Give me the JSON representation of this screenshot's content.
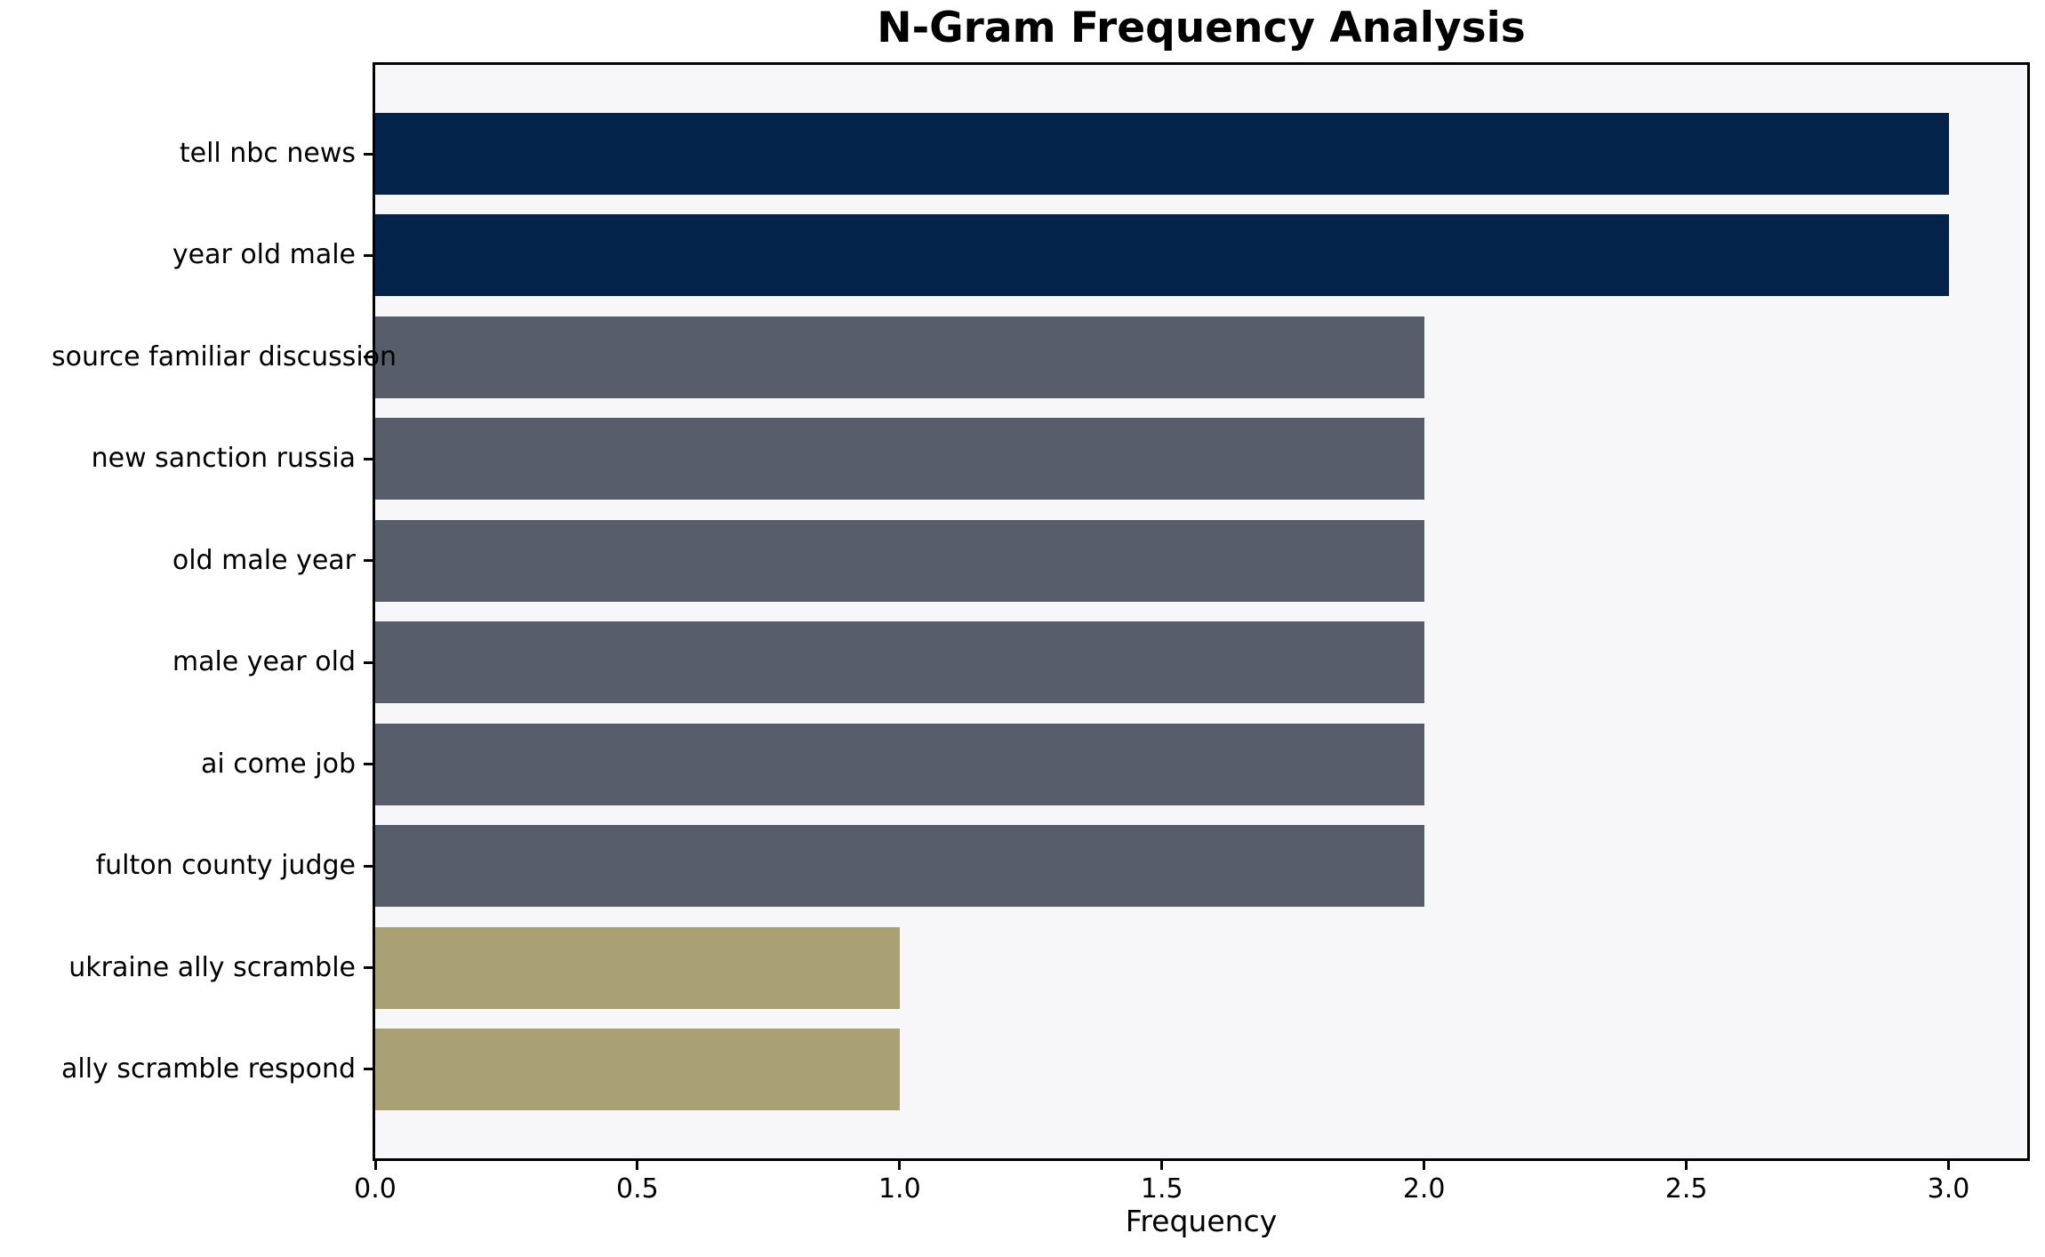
{
  "chart_data": {
    "type": "bar",
    "orientation": "horizontal",
    "title": "N-Gram Frequency Analysis",
    "xlabel": "Frequency",
    "ylabel": "",
    "categories": [
      "tell nbc news",
      "year old male",
      "source familiar discussion",
      "new sanction russia",
      "old male year",
      "male year old",
      "ai come job",
      "fulton county judge",
      "ukraine ally scramble",
      "ally scramble respond"
    ],
    "values": [
      3,
      3,
      2,
      2,
      2,
      2,
      2,
      2,
      1,
      1
    ],
    "bar_colors": [
      "#03234b",
      "#03234b",
      "#585d6b",
      "#585d6b",
      "#585d6b",
      "#585d6b",
      "#585d6b",
      "#585d6b",
      "#a9a074",
      "#a9a074"
    ],
    "xlim": [
      0,
      3.15
    ],
    "xticks": [
      0.0,
      0.5,
      1.0,
      1.5,
      2.0,
      2.5,
      3.0
    ],
    "xtick_labels": [
      "0.0",
      "0.5",
      "1.0",
      "1.5",
      "2.0",
      "2.5",
      "3.0"
    ],
    "grid": false,
    "legend": null,
    "plot_bg_color": "#f7f7f9",
    "figure_bg_color": "#ffffff",
    "spine_color": "#000000",
    "text_color": "#000000"
  }
}
